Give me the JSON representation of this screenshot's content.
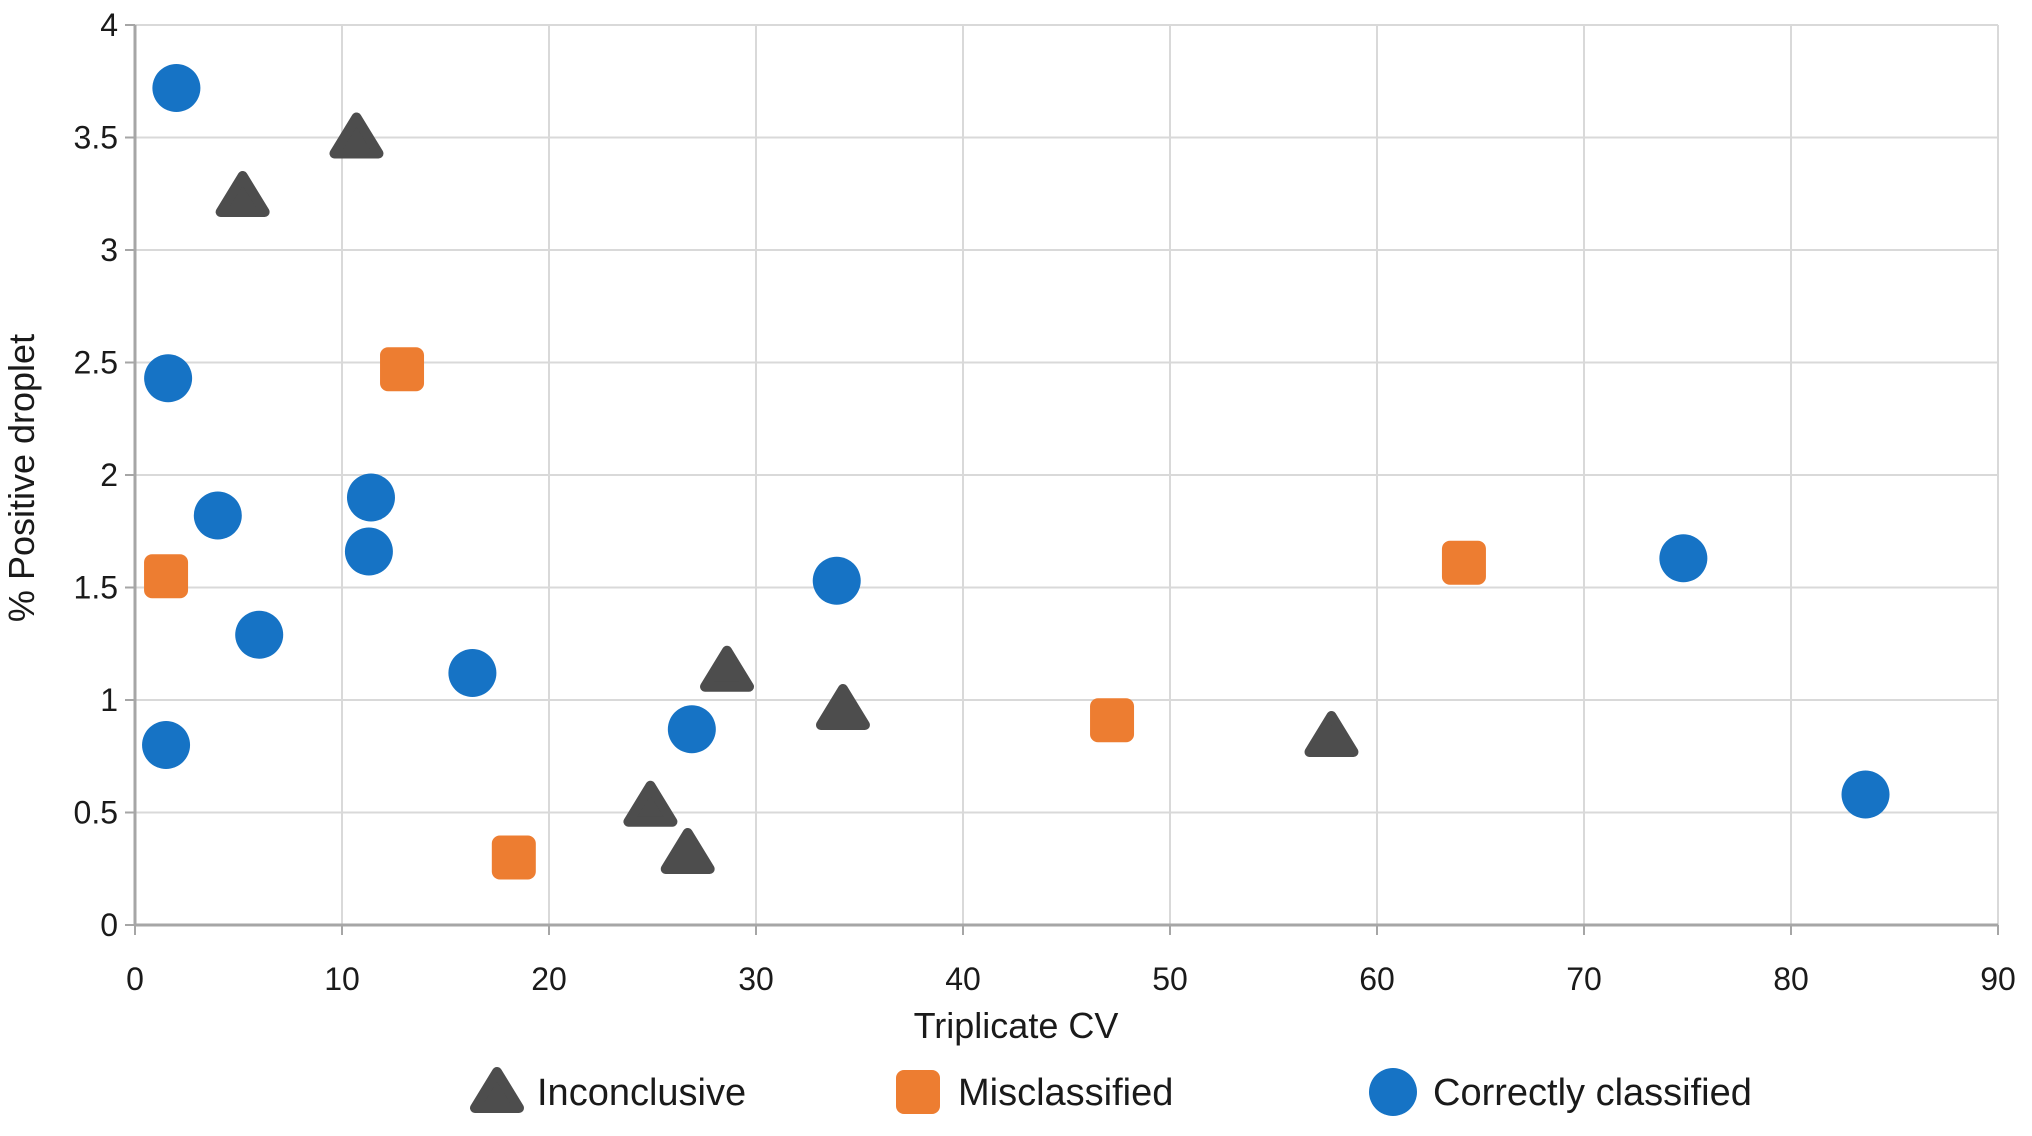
{
  "chart_data": {
    "type": "scatter",
    "title": "",
    "xlabel": "Triplicate CV",
    "ylabel": "% Positive droplet",
    "xlim": [
      0,
      90
    ],
    "ylim": [
      0,
      4
    ],
    "x_ticks": [
      0,
      10,
      20,
      30,
      40,
      50,
      60,
      70,
      80,
      90
    ],
    "y_ticks": [
      0,
      0.5,
      1,
      1.5,
      2,
      2.5,
      3,
      3.5,
      4
    ],
    "y_tick_labels": [
      "0",
      "0.5",
      "1",
      "1.5",
      "2",
      "2.5",
      "3",
      "3.5",
      "4"
    ],
    "grid": true,
    "legend_position": "bottom",
    "series": [
      {
        "name": "Inconclusive",
        "marker": "triangle",
        "color": "#4D4D4D",
        "points": [
          [
            5.2,
            3.24
          ],
          [
            10.7,
            3.5
          ],
          [
            24.9,
            0.53
          ],
          [
            26.7,
            0.32
          ],
          [
            28.6,
            1.13
          ],
          [
            34.2,
            0.96
          ],
          [
            57.8,
            0.84
          ]
        ]
      },
      {
        "name": "Misclassified",
        "marker": "square",
        "color": "#ED7D31",
        "points": [
          [
            1.5,
            1.55
          ],
          [
            12.9,
            2.47
          ],
          [
            18.3,
            0.3
          ],
          [
            47.2,
            0.91
          ],
          [
            64.2,
            1.61
          ]
        ]
      },
      {
        "name": "Correctly classified",
        "marker": "circle",
        "color": "#1673C5",
        "points": [
          [
            1.5,
            0.8
          ],
          [
            1.6,
            2.43
          ],
          [
            2.0,
            3.72
          ],
          [
            4.0,
            1.82
          ],
          [
            6.0,
            1.29
          ],
          [
            11.3,
            1.66
          ],
          [
            11.4,
            1.9
          ],
          [
            16.3,
            1.12
          ],
          [
            26.9,
            0.87
          ],
          [
            33.9,
            1.53
          ],
          [
            74.8,
            1.63
          ],
          [
            83.6,
            0.58
          ]
        ]
      }
    ],
    "styles": {
      "grid_color": "#d9d9d9",
      "axis_color": "#a6a6a6",
      "tick_text_color": "#1a1a1a",
      "background": "#ffffff"
    }
  }
}
